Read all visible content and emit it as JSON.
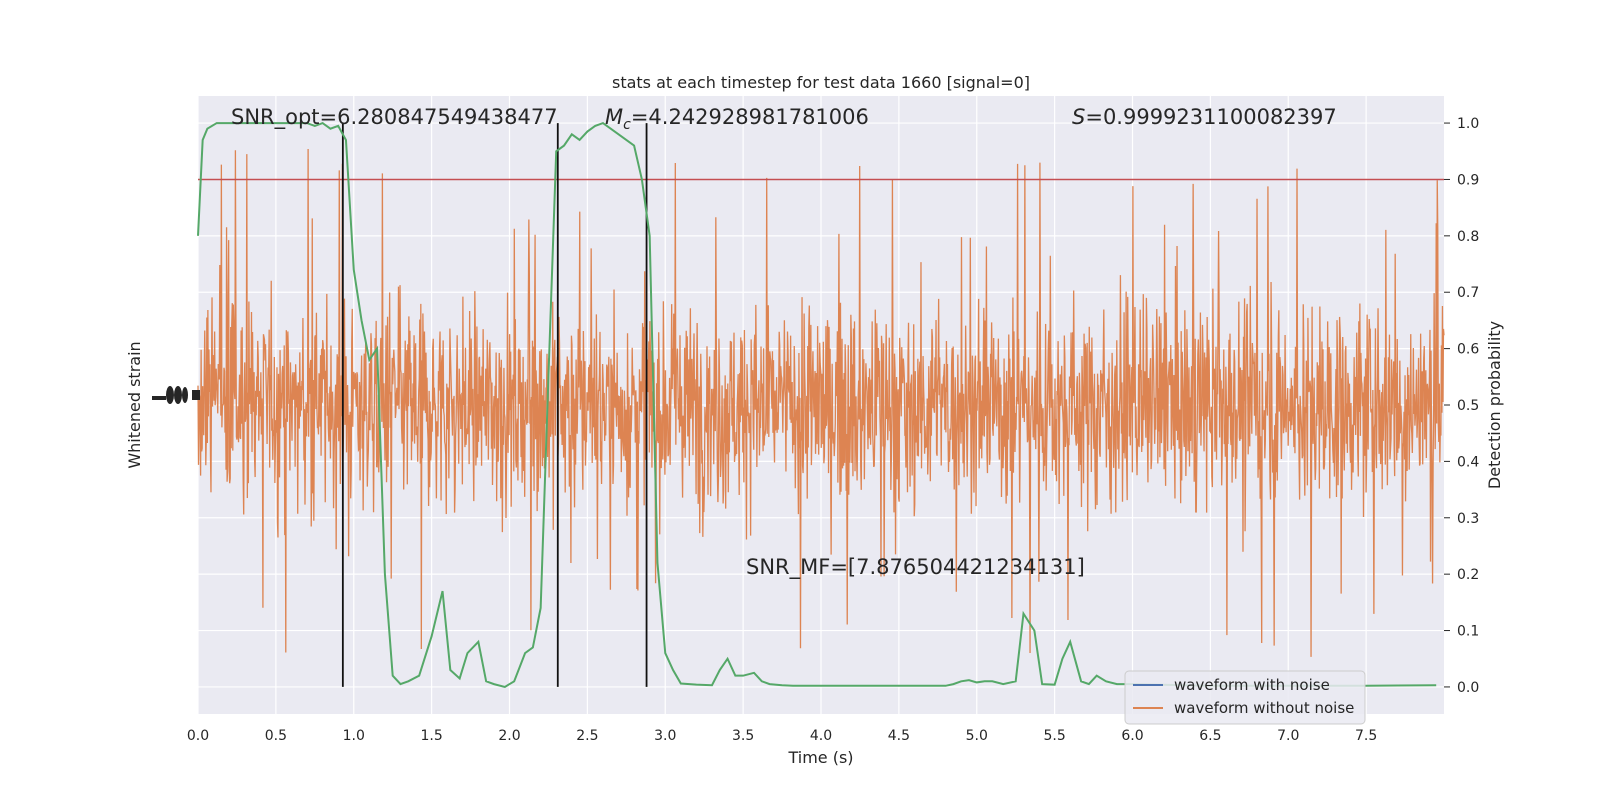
{
  "chart_data": {
    "type": "line",
    "title": "stats at each timestep for test data 1660 [signal=0]",
    "xlabel": "Time (s)",
    "ylabel_left": "Whitened strain",
    "ylabel_right": "Detection probability",
    "xlim": [
      0,
      8.0
    ],
    "ylim_right": [
      -0.048,
      1.048
    ],
    "x_ticks": [
      0.0,
      0.5,
      1.0,
      1.5,
      2.0,
      2.5,
      3.0,
      3.5,
      4.0,
      4.5,
      5.0,
      5.5,
      6.0,
      6.5,
      7.0,
      7.5
    ],
    "x_tick_labels": [
      "0.0",
      "0.5",
      "1.0",
      "1.5",
      "2.0",
      "2.5",
      "3.0",
      "3.5",
      "4.0",
      "4.5",
      "5.0",
      "5.5",
      "6.0",
      "6.5",
      "7.0",
      "7.5"
    ],
    "y_right_ticks": [
      0.0,
      0.1,
      0.2,
      0.3,
      0.4,
      0.5,
      0.6,
      0.7,
      0.8,
      0.9,
      1.0
    ],
    "y_right_tick_labels": [
      "0.0",
      "0.1",
      "0.2",
      "0.3",
      "0.4",
      "0.5",
      "0.6",
      "0.7",
      "0.8",
      "0.9",
      "1.0"
    ],
    "grid": true,
    "legend_position": "lower-right",
    "annotations": {
      "snr_opt": "SNR_opt=6.280847549438477",
      "mc_symbol": "M",
      "mc_sub": "c",
      "mc_value": "=4.242928981781006",
      "s_symbol": "S",
      "s_value": "=0.9999231100082397",
      "snr_mf": "SNR_MF=[7.876504421234131]"
    },
    "threshold": 0.9,
    "vertical_lines": [
      0.93,
      2.31,
      2.88
    ],
    "series": [
      {
        "name": "waveform with noise",
        "color": "#4c72b0",
        "axis": "left",
        "values": []
      },
      {
        "name": "waveform without noise",
        "color": "#dd8452",
        "axis": "left",
        "noise_band": [
          0.3,
          0.7
        ],
        "x_range": [
          0,
          8.0
        ]
      },
      {
        "color": "#55a868",
        "axis": "right",
        "x": [
          0.0,
          0.03,
          0.06,
          0.12,
          0.2,
          0.3,
          0.4,
          0.5,
          0.6,
          0.7,
          0.75,
          0.8,
          0.85,
          0.9,
          0.95,
          1.0,
          1.05,
          1.1,
          1.15,
          1.2,
          1.25,
          1.3,
          1.35,
          1.42,
          1.5,
          1.57,
          1.62,
          1.68,
          1.73,
          1.8,
          1.85,
          1.9,
          1.97,
          2.03,
          2.1,
          2.15,
          2.2,
          2.25,
          2.3,
          2.35,
          2.4,
          2.45,
          2.5,
          2.55,
          2.6,
          2.65,
          2.7,
          2.75,
          2.8,
          2.85,
          2.9,
          2.95,
          3.0,
          3.05,
          3.1,
          3.2,
          3.3,
          3.35,
          3.4,
          3.45,
          3.5,
          3.57,
          3.62,
          3.67,
          3.75,
          3.82,
          3.9,
          4.0,
          4.2,
          4.5,
          4.8,
          4.85,
          4.9,
          4.95,
          5.0,
          5.05,
          5.1,
          5.17,
          5.25,
          5.3,
          5.37,
          5.42,
          5.5,
          5.55,
          5.6,
          5.67,
          5.72,
          5.77,
          5.83,
          5.9,
          6.0,
          6.5,
          7.0,
          7.5,
          7.95
        ],
        "values": [
          0.8,
          0.97,
          0.99,
          1.0,
          1.0,
          1.0,
          1.0,
          1.0,
          1.0,
          1.0,
          0.995,
          1.0,
          0.99,
          0.995,
          0.97,
          0.74,
          0.65,
          0.58,
          0.6,
          0.2,
          0.02,
          0.005,
          0.01,
          0.02,
          0.09,
          0.17,
          0.03,
          0.015,
          0.06,
          0.08,
          0.01,
          0.005,
          0.0,
          0.01,
          0.06,
          0.07,
          0.14,
          0.55,
          0.95,
          0.96,
          0.98,
          0.97,
          0.985,
          0.995,
          1.0,
          0.99,
          0.98,
          0.97,
          0.96,
          0.9,
          0.8,
          0.22,
          0.06,
          0.03,
          0.006,
          0.004,
          0.003,
          0.03,
          0.05,
          0.02,
          0.02,
          0.025,
          0.01,
          0.005,
          0.003,
          0.002,
          0.002,
          0.002,
          0.002,
          0.002,
          0.002,
          0.005,
          0.01,
          0.012,
          0.008,
          0.01,
          0.01,
          0.005,
          0.01,
          0.13,
          0.1,
          0.005,
          0.004,
          0.05,
          0.08,
          0.01,
          0.005,
          0.02,
          0.01,
          0.005,
          0.005,
          0.002,
          0.002,
          0.002,
          0.003
        ]
      }
    ]
  }
}
